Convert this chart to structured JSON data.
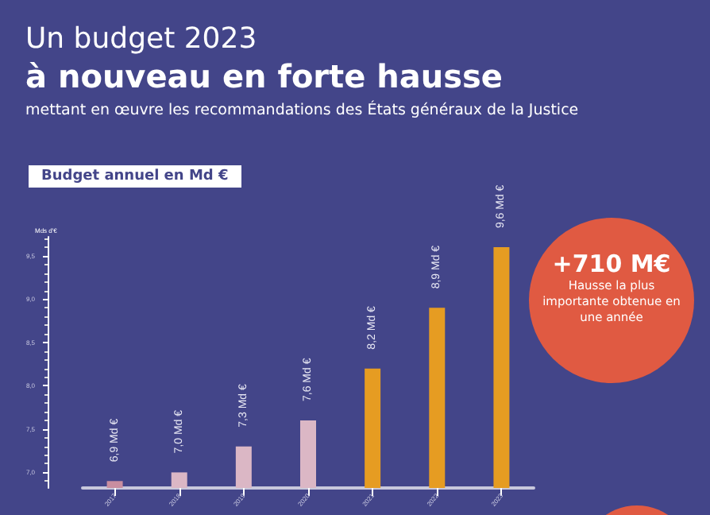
{
  "chart_data": {
    "type": "bar",
    "title": "Un budget 2023",
    "subtitle": "à nouveau en forte hausse",
    "annotations": [
      "mettant en œuvre les recommandations des États généraux de la Justice",
      "Budget annuel en Md €",
      "+710 M€",
      "Hausse la plus importante obtenue en une année"
    ],
    "ylabel": "Mds d'€",
    "categories": [
      "2017",
      "2018",
      "2019",
      "2020",
      "2021",
      "2022",
      "2023"
    ],
    "values": [
      6.9,
      7.0,
      7.3,
      7.6,
      8.2,
      8.9,
      9.6
    ],
    "colors": [
      "#c98ea0",
      "#dbb7c5",
      "#dbb7c5",
      "#dbb7c5",
      "#e69c22",
      "#e69c22",
      "#e69c22"
    ],
    "value_labels": [
      "6,9 Md €",
      "7,0 Md €",
      "7,3 Md €",
      "7,6 Md €",
      "8,2 Md €",
      "8,9 Md €",
      "9,6 Md €"
    ],
    "ylim": [
      6.82,
      9.72
    ],
    "yticks": [
      {
        "value": 7.0,
        "label": "7,0"
      },
      {
        "value": 7.5,
        "label": "7,5"
      },
      {
        "value": 8.0,
        "label": "8,0"
      },
      {
        "value": 8.5,
        "label": "8,5"
      },
      {
        "value": 9.0,
        "label": "9,0"
      },
      {
        "value": 9.5,
        "label": "9,5"
      }
    ],
    "grid": false
  }
}
